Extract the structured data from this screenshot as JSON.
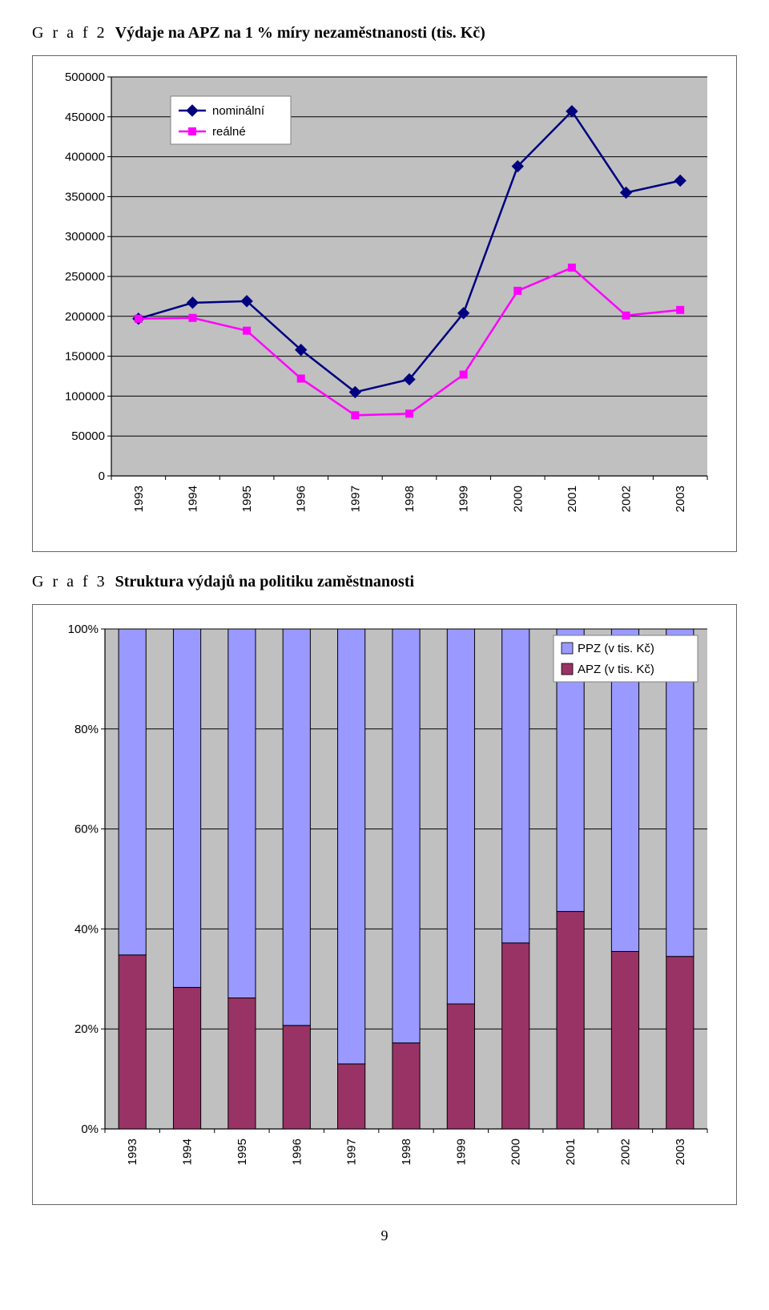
{
  "page_number": "9",
  "chart1": {
    "title_label": "G r a f 2",
    "title_bold": "Výdaje na APZ na 1 % míry nezaměstnanosti (tis. Kč)",
    "type": "line",
    "plot_background": "#c0c0c0",
    "outer_background": "#ffffff",
    "grid_color": "#000000",
    "axis_fontsize": 15,
    "ylim": [
      0,
      500000
    ],
    "ytick_step": 50000,
    "yticks": [
      "0",
      "50000",
      "100000",
      "150000",
      "200000",
      "250000",
      "300000",
      "350000",
      "400000",
      "450000",
      "500000"
    ],
    "categories": [
      "1993",
      "1994",
      "1995",
      "1996",
      "1997",
      "1998",
      "1999",
      "2000",
      "2001",
      "2002",
      "2003"
    ],
    "legend_border": "#7f7f7f",
    "legend_background": "#ffffff",
    "series": [
      {
        "name": "nominální",
        "color": "#000080",
        "marker": "diamond",
        "marker_size": 10,
        "line_width": 2.5,
        "values": [
          197000,
          217000,
          219000,
          158000,
          105000,
          121000,
          204000,
          388000,
          457000,
          355000,
          370000
        ]
      },
      {
        "name": "reálné",
        "color": "#ff00ff",
        "marker": "square",
        "marker_size": 10,
        "line_width": 2.5,
        "values": [
          197000,
          198000,
          182000,
          122000,
          76000,
          78000,
          127000,
          232000,
          261000,
          201000,
          208000
        ]
      }
    ]
  },
  "chart2": {
    "title_label": "G r a f 3",
    "title_bold": "Struktura výdajů na politiku zaměstnanosti",
    "type": "stacked_bar_100",
    "plot_background": "#c0c0c0",
    "outer_background": "#ffffff",
    "grid_color": "#000000",
    "axis_fontsize": 15,
    "yticks": [
      "0%",
      "20%",
      "40%",
      "60%",
      "80%",
      "100%"
    ],
    "categories": [
      "1993",
      "1994",
      "1995",
      "1996",
      "1997",
      "1998",
      "1999",
      "2000",
      "2001",
      "2002",
      "2003"
    ],
    "legend_border": "#7f7f7f",
    "legend_background": "#ffffff",
    "bar_width_ratio": 0.5,
    "series": [
      {
        "name": "PPZ (v tis. Kč)",
        "color": "#9999ff",
        "values_pct": [
          65.2,
          71.7,
          73.8,
          79.3,
          87.0,
          82.8,
          75.0,
          62.8,
          56.5,
          64.5,
          65.5
        ]
      },
      {
        "name": "APZ (v tis. Kč)",
        "color": "#993366",
        "values_pct": [
          34.8,
          28.3,
          26.2,
          20.7,
          13.0,
          17.2,
          25.0,
          37.2,
          43.5,
          35.5,
          34.5
        ]
      }
    ]
  }
}
